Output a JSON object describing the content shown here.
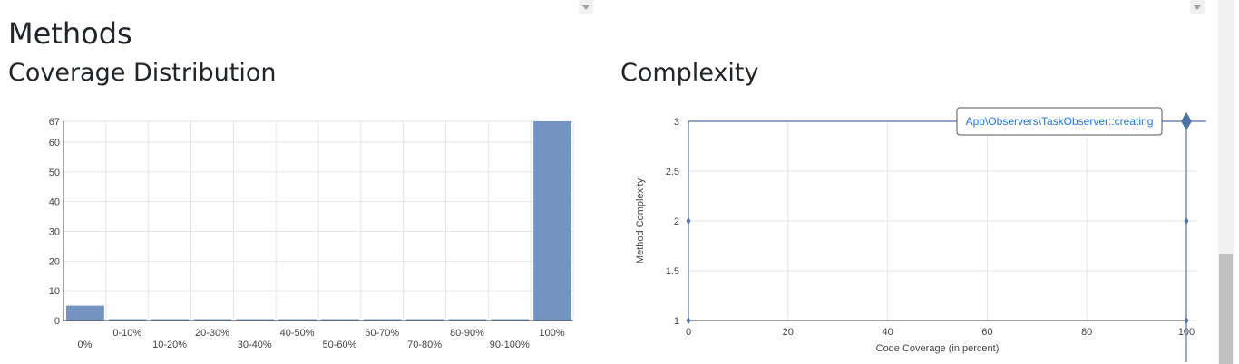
{
  "page": {
    "heading": "Methods",
    "coverage_section_title": "Coverage Distribution",
    "complexity_section_title": "Complexity"
  },
  "colors": {
    "bar_fill": "#7493c0",
    "point": "#4c74a8",
    "grid": "#e6e6e6",
    "tooltip_text": "#1f74e4"
  },
  "chart_data": [
    {
      "type": "bar",
      "title": "Coverage Distribution",
      "categories": [
        "0%",
        "0-10%",
        "10-20%",
        "20-30%",
        "30-40%",
        "40-50%",
        "50-60%",
        "60-70%",
        "70-80%",
        "80-90%",
        "90-100%",
        "100%"
      ],
      "values": [
        5,
        0,
        0,
        0,
        0,
        0,
        0,
        0,
        0,
        0,
        0,
        67
      ],
      "xlabel": "",
      "ylabel": "",
      "ylim": [
        0,
        67
      ],
      "yticks": [
        0,
        10,
        20,
        30,
        40,
        50,
        60,
        67
      ],
      "grid": true
    },
    {
      "type": "scatter",
      "title": "Complexity",
      "xlabel": "Code Coverage (in percent)",
      "ylabel": "Method Complexity",
      "xlim": [
        0,
        100
      ],
      "ylim": [
        1,
        3
      ],
      "xticks": [
        0,
        20,
        40,
        60,
        80,
        100
      ],
      "yticks": [
        1,
        1.5,
        2,
        2.5,
        3
      ],
      "grid": true,
      "points": [
        {
          "x": 0,
          "y": 1
        },
        {
          "x": 0,
          "y": 2
        },
        {
          "x": 100,
          "y": 1
        },
        {
          "x": 100,
          "y": 2
        },
        {
          "x": 100,
          "y": 3
        }
      ],
      "hovered_point": {
        "x": 100,
        "y": 3
      },
      "tooltip": "App\\Observers\\TaskObserver::creating"
    }
  ]
}
